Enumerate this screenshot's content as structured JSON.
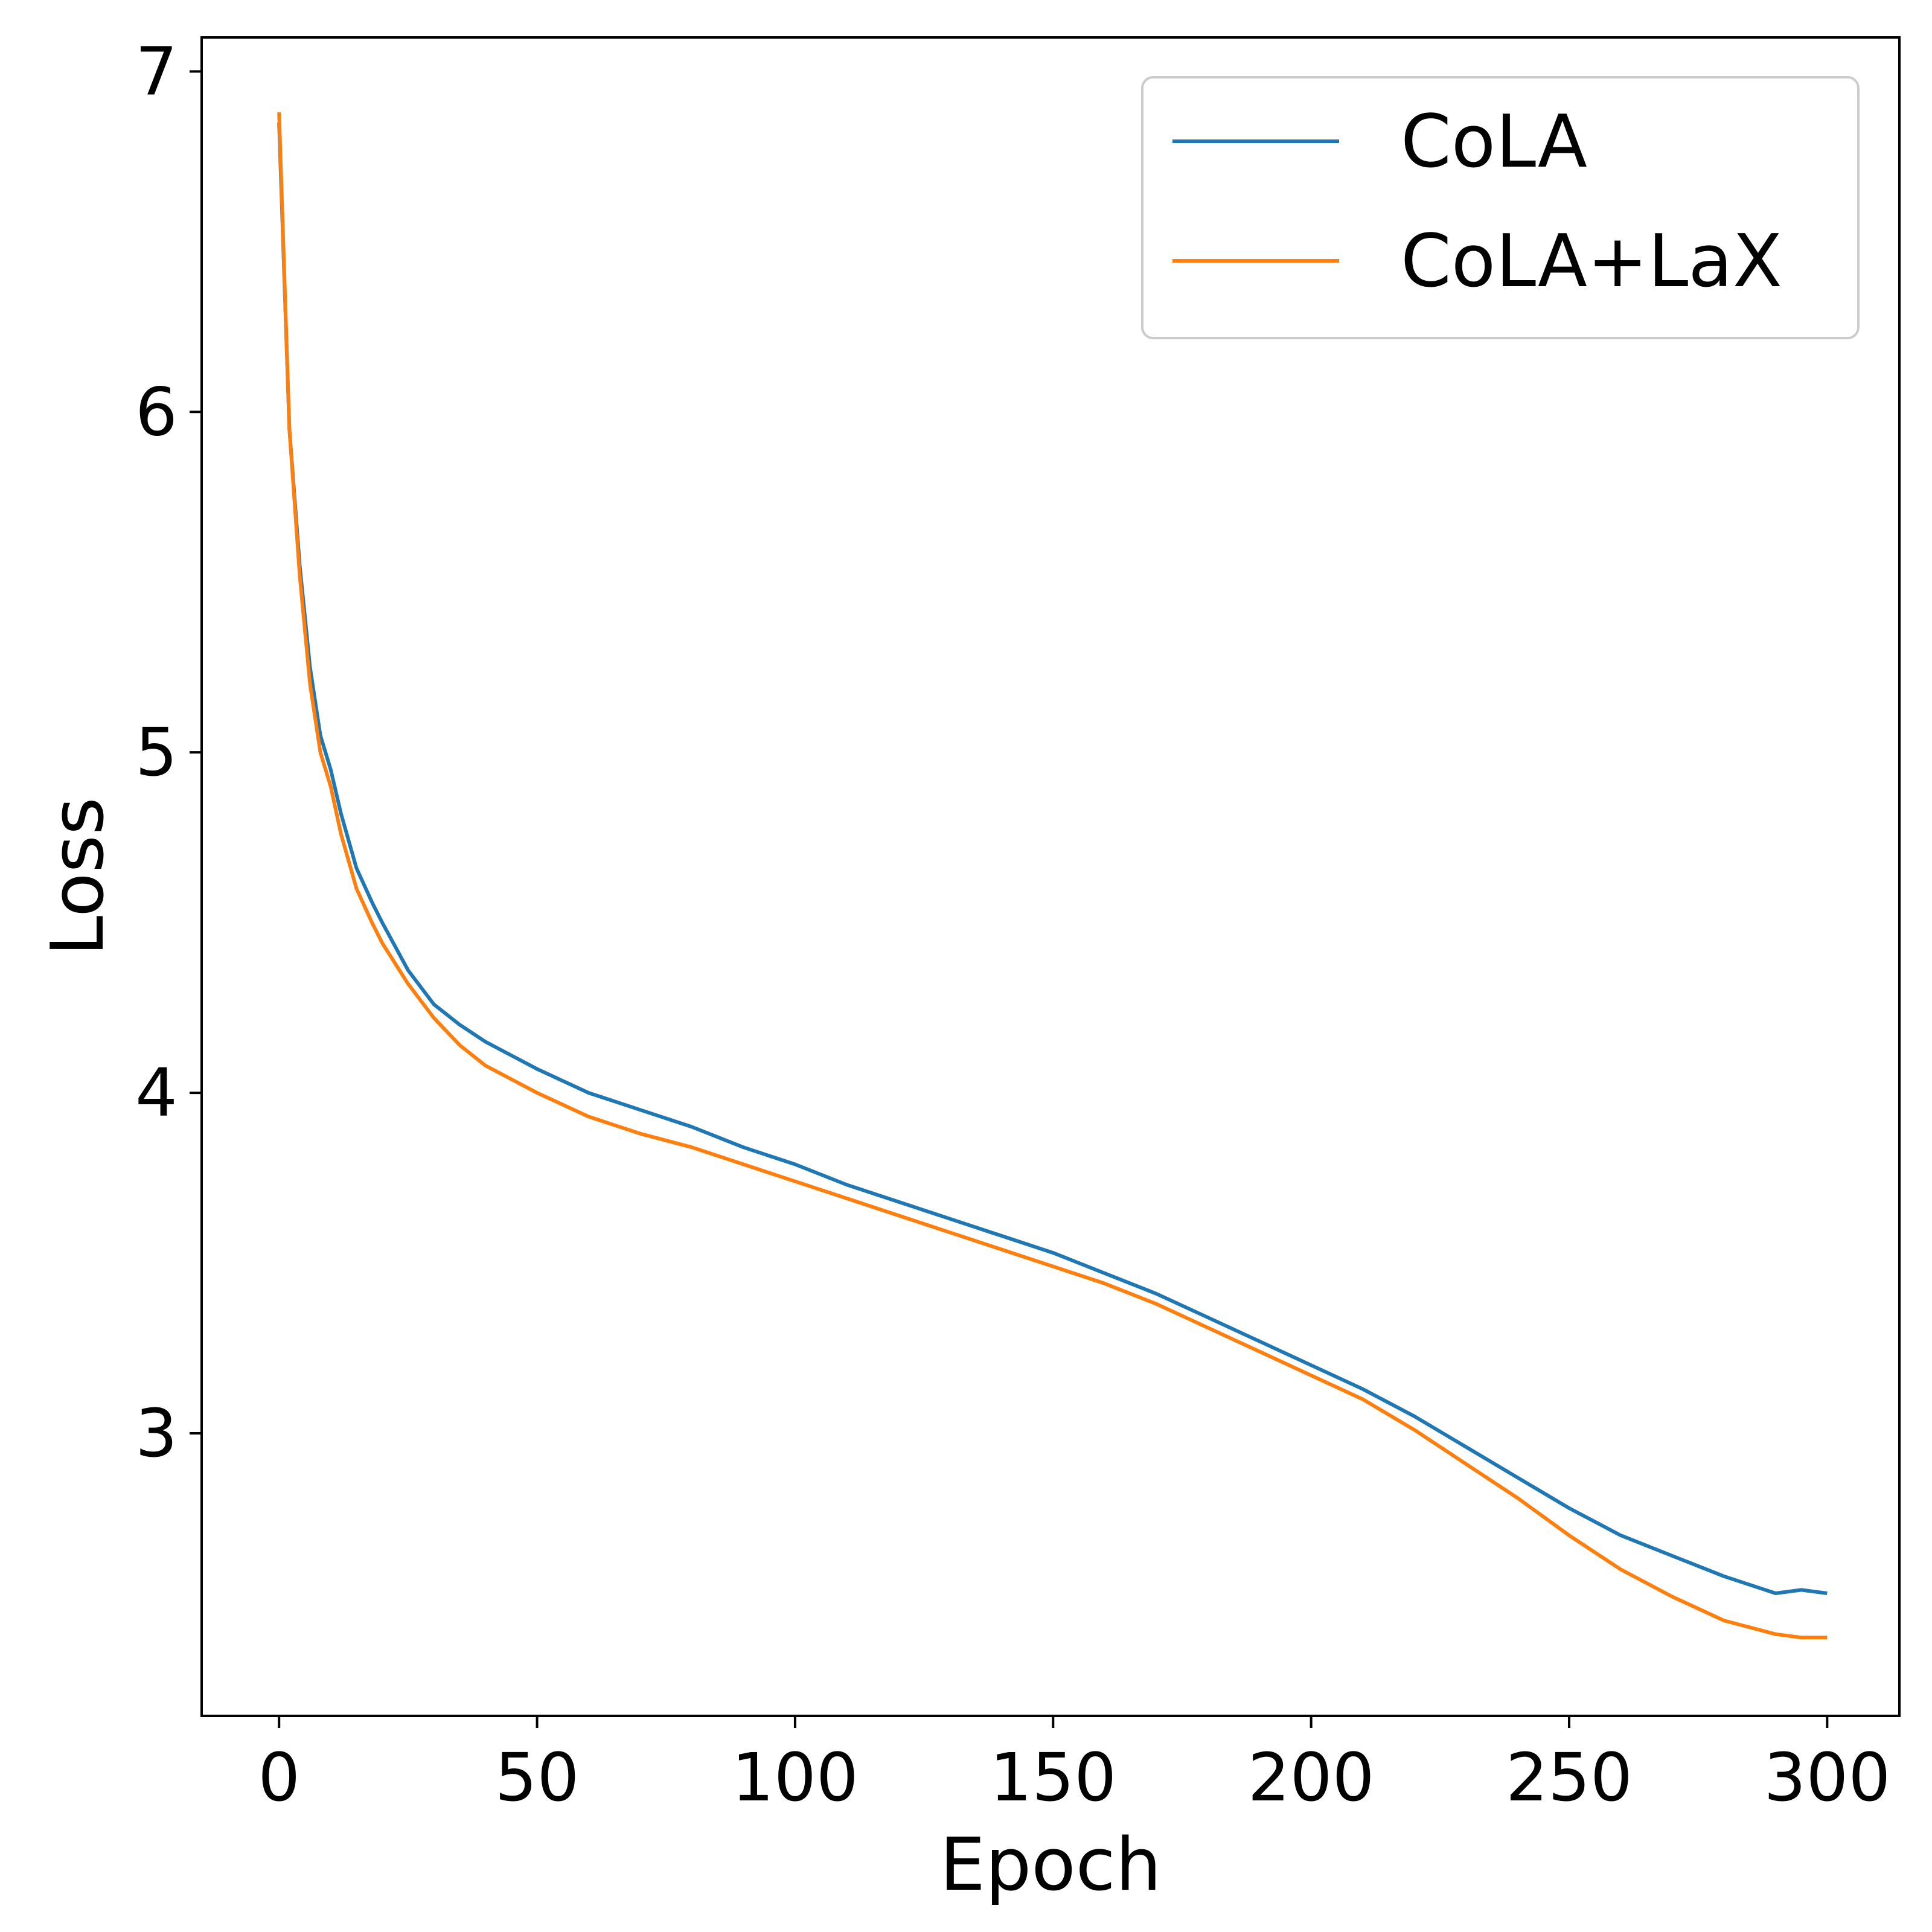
{
  "chart_data": {
    "type": "line",
    "title": "",
    "xlabel": "Epoch",
    "ylabel": "Loss",
    "xlim": [
      -15,
      314
    ],
    "ylim": [
      2.17,
      7.1
    ],
    "xticks": [
      0,
      50,
      100,
      150,
      200,
      250,
      300
    ],
    "yticks": [
      3,
      4,
      5,
      6,
      7
    ],
    "grid": false,
    "legend_position": "top-right",
    "series": [
      {
        "name": "CoLA",
        "color": "#1f77b4",
        "x": [
          0,
          2,
          4,
          6,
          8,
          10,
          12,
          15,
          18,
          20,
          25,
          30,
          35,
          40,
          45,
          50,
          60,
          70,
          80,
          90,
          100,
          110,
          120,
          130,
          140,
          150,
          160,
          170,
          180,
          190,
          200,
          210,
          220,
          230,
          240,
          250,
          260,
          270,
          280,
          290,
          295,
          300
        ],
        "y": [
          6.85,
          5.95,
          5.55,
          5.25,
          5.05,
          4.95,
          4.82,
          4.66,
          4.56,
          4.5,
          4.36,
          4.26,
          4.2,
          4.15,
          4.11,
          4.07,
          4.0,
          3.95,
          3.9,
          3.84,
          3.79,
          3.73,
          3.68,
          3.63,
          3.58,
          3.53,
          3.47,
          3.41,
          3.34,
          3.27,
          3.2,
          3.13,
          3.05,
          2.96,
          2.87,
          2.78,
          2.7,
          2.64,
          2.58,
          2.53,
          2.54,
          2.53
        ]
      },
      {
        "name": "CoLA+LaX",
        "color": "#ff7f0e",
        "x": [
          0,
          2,
          4,
          6,
          8,
          10,
          12,
          15,
          18,
          20,
          25,
          30,
          35,
          40,
          45,
          50,
          60,
          70,
          80,
          90,
          100,
          110,
          120,
          130,
          140,
          150,
          160,
          170,
          180,
          190,
          200,
          210,
          220,
          230,
          240,
          250,
          260,
          270,
          280,
          290,
          295,
          300
        ],
        "y": [
          6.88,
          5.95,
          5.52,
          5.2,
          5.0,
          4.9,
          4.76,
          4.6,
          4.5,
          4.44,
          4.32,
          4.22,
          4.14,
          4.08,
          4.04,
          4.0,
          3.93,
          3.88,
          3.84,
          3.79,
          3.74,
          3.69,
          3.64,
          3.59,
          3.54,
          3.49,
          3.44,
          3.38,
          3.31,
          3.24,
          3.17,
          3.1,
          3.01,
          2.91,
          2.81,
          2.7,
          2.6,
          2.52,
          2.45,
          2.41,
          2.4,
          2.4
        ]
      }
    ]
  }
}
